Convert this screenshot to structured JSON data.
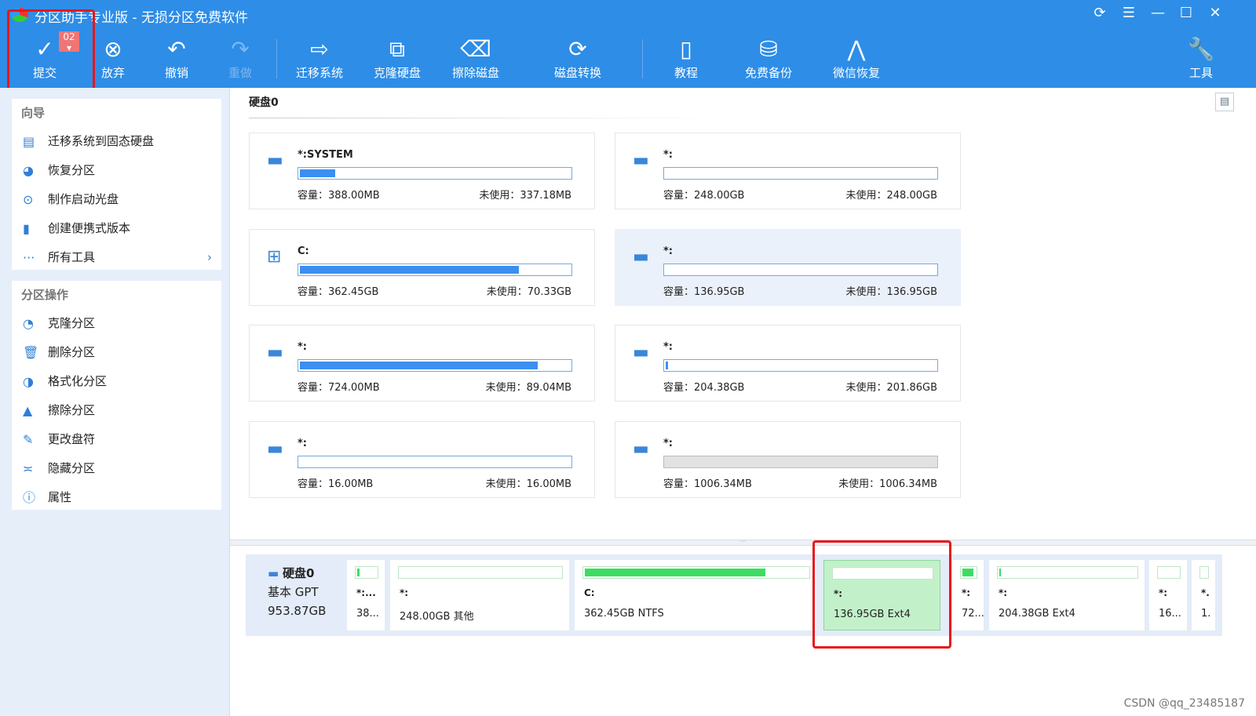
{
  "app": {
    "title": "分区助手专业版 - 无损分区免费软件",
    "window_controls": [
      "refresh-icon",
      "menu-icon",
      "minimize-icon",
      "maximize-icon",
      "close-icon"
    ]
  },
  "toolbar": {
    "badge": "02",
    "items": [
      {
        "label": "提交",
        "icon": "check-icon",
        "glyph": "✓"
      },
      {
        "label": "放弃",
        "icon": "discard-icon",
        "glyph": "⊗"
      },
      {
        "label": "撤销",
        "icon": "undo-icon",
        "glyph": "↶"
      },
      {
        "label": "重做",
        "icon": "redo-icon",
        "glyph": "↷",
        "disabled": true
      },
      {
        "label": "迁移系统",
        "icon": "migrate-os-icon",
        "glyph": "⇨"
      },
      {
        "label": "克隆硬盘",
        "icon": "clone-disk-icon",
        "glyph": "⧉"
      },
      {
        "label": "擦除磁盘",
        "icon": "wipe-disk-icon",
        "glyph": "⌫"
      },
      {
        "label": "磁盘转换",
        "icon": "convert-disk-icon",
        "glyph": "⟳"
      },
      {
        "label": "教程",
        "icon": "tutorial-icon",
        "glyph": "▯"
      },
      {
        "label": "免费备份",
        "icon": "backup-icon",
        "glyph": "⛁"
      },
      {
        "label": "微信恢复",
        "icon": "wechat-recovery-icon",
        "glyph": "⋀"
      },
      {
        "label": "工具",
        "icon": "tools-icon",
        "glyph": "🔧"
      }
    ]
  },
  "sidebar": {
    "wizard": {
      "title": "向导",
      "items": [
        {
          "label": "迁移系统到固态硬盘",
          "icon": "migrate-icon",
          "glyph": "▤"
        },
        {
          "label": "恢复分区",
          "icon": "recover-icon",
          "glyph": "◕"
        },
        {
          "label": "制作启动光盘",
          "icon": "bootdisk-icon",
          "glyph": "⊙"
        },
        {
          "label": "创建便携式版本",
          "icon": "portable-icon",
          "glyph": "▮"
        },
        {
          "label": "所有工具",
          "icon": "more-icon",
          "glyph": "···",
          "chevron": true
        }
      ]
    },
    "ops": {
      "title": "分区操作",
      "items": [
        {
          "label": "克隆分区",
          "icon": "clone-partition-icon",
          "glyph": "◔"
        },
        {
          "label": "删除分区",
          "icon": "delete-icon",
          "glyph": "🗑"
        },
        {
          "label": "格式化分区",
          "icon": "format-icon",
          "glyph": "◑"
        },
        {
          "label": "擦除分区",
          "icon": "wipe-icon",
          "glyph": "▲"
        },
        {
          "label": "更改盘符",
          "icon": "edit-icon",
          "glyph": "✎"
        },
        {
          "label": "隐藏分区",
          "icon": "hide-icon",
          "glyph": "≍"
        },
        {
          "label": "属性",
          "icon": "info-icon",
          "glyph": "ⓘ"
        }
      ]
    }
  },
  "main": {
    "disk_title": "硬盘0",
    "cards": [
      {
        "name": "*:SYSTEM",
        "capacity": "容量：388.00MB",
        "free": "未使用：337.18MB",
        "used_pct": 13
      },
      {
        "name": "*:",
        "capacity": "容量：248.00GB",
        "free": "未使用：248.00GB",
        "used_pct": 0
      },
      {
        "name": "C:",
        "capacity": "容量：362.45GB",
        "free": "未使用：70.33GB",
        "used_pct": 81,
        "windows": true
      },
      {
        "name": "*:",
        "capacity": "容量：136.95GB",
        "free": "未使用：136.95GB",
        "used_pct": 0,
        "selected": true
      },
      {
        "name": "*:",
        "capacity": "容量：724.00MB",
        "free": "未使用：89.04MB",
        "used_pct": 88
      },
      {
        "name": "*:",
        "capacity": "容量：204.38GB",
        "free": "未使用：201.86GB",
        "used_pct": 1
      },
      {
        "name": "*:",
        "capacity": "容量：16.00MB",
        "free": "未使用：16.00MB",
        "used_pct": 0
      },
      {
        "name": "*:",
        "capacity": "容量：1006.34MB",
        "free": "未使用：1006.34MB",
        "used_pct": 0,
        "unallocated": true
      }
    ]
  },
  "diskmap": {
    "name": "硬盘0",
    "type": "基本 GPT",
    "size": "953.87GB",
    "partitions": [
      {
        "name": "*:...",
        "info": "38...",
        "used_pct": 13
      },
      {
        "name": "*:",
        "info": "248.00GB 其他",
        "used_pct": 0
      },
      {
        "name": "C:",
        "info": "362.45GB NTFS",
        "used_pct": 81
      },
      {
        "name": "*:",
        "info": "136.95GB Ext4",
        "used_pct": 0,
        "selected": true
      },
      {
        "name": "*:",
        "info": "72...",
        "used_pct": 88
      },
      {
        "name": "*:",
        "info": "204.38GB Ext4",
        "used_pct": 1
      },
      {
        "name": "*:",
        "info": "16...",
        "used_pct": 0
      },
      {
        "name": "*.",
        "info": "1.",
        "used_pct": 0
      }
    ]
  },
  "watermark": "CSDN @qq_23485187"
}
